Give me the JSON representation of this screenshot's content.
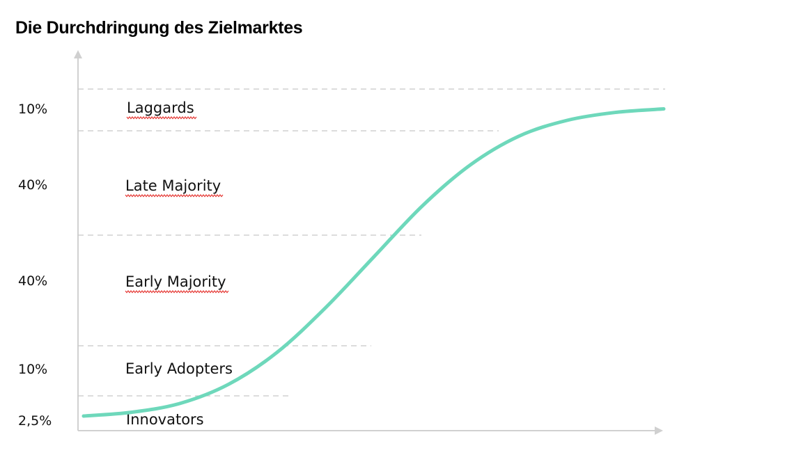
{
  "title": "Die Durchdringung des Zielmarktes",
  "colors": {
    "curve": "#6ed8bb",
    "axis": "#d0d0d0",
    "guide": "#c8c8c8",
    "spellcheck": "#e53935",
    "text": "#111111"
  },
  "chart_data": {
    "type": "line",
    "title": "Die Durchdringung des Zielmarktes",
    "xlabel": "",
    "ylabel": "",
    "grid": false,
    "segments": [
      {
        "label": "Innovators",
        "percent": "2,5%",
        "value": 2.5,
        "spellcheck_underline": false
      },
      {
        "label": "Early Adopters",
        "percent": "10%",
        "value": 10,
        "spellcheck_underline": false
      },
      {
        "label": "Early Majority",
        "percent": "40%",
        "value": 40,
        "spellcheck_underline": true
      },
      {
        "label": "Late Majority",
        "percent": "40%",
        "value": 40,
        "spellcheck_underline": true
      },
      {
        "label": "Laggards",
        "percent": "10%",
        "value": 10,
        "spellcheck_underline": true
      }
    ],
    "series": [
      {
        "values": [
          0,
          1.2,
          4,
          10,
          20,
          34,
          50,
          66,
          79,
          88,
          93,
          95.5,
          96.6
        ]
      }
    ]
  }
}
